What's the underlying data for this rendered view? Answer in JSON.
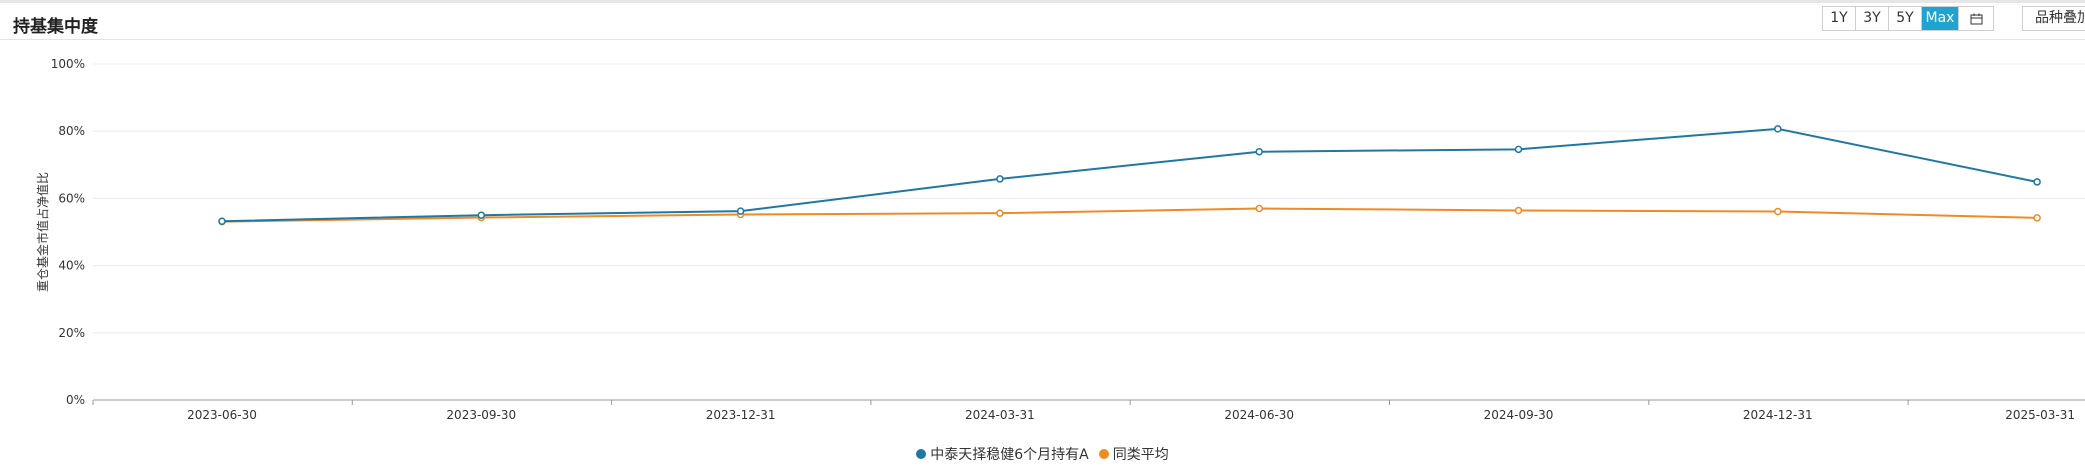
{
  "header": {
    "title": "持基集中度"
  },
  "range_buttons": [
    {
      "label": "1Y",
      "active": false
    },
    {
      "label": "3Y",
      "active": false
    },
    {
      "label": "5Y",
      "active": false
    },
    {
      "label": "Max",
      "active": true
    }
  ],
  "calendar_icon": "calendar-icon",
  "overlay_button": {
    "label": "品种叠加"
  },
  "colors": {
    "series1": "#1f77a4",
    "series2": "#f08a24",
    "active_button": "#1ea3d3"
  },
  "chart_data": {
    "type": "line",
    "ylabel": "重仓基金市值占净值比",
    "xlabel": "",
    "ylim": [
      0,
      100
    ],
    "y_ticks": [
      "0%",
      "20%",
      "40%",
      "60%",
      "80%",
      "100%"
    ],
    "categories": [
      "2023-06-30",
      "2023-09-30",
      "2023-12-31",
      "2024-03-31",
      "2024-06-30",
      "2024-09-30",
      "2024-12-31",
      "2025-03-31"
    ],
    "series": [
      {
        "name": "中泰天择稳健6个月持有A",
        "values": [
          53.2,
          55.0,
          56.2,
          65.8,
          73.9,
          74.6,
          80.7,
          64.9
        ]
      },
      {
        "name": "同类平均",
        "values": [
          53.1,
          54.3,
          55.2,
          55.6,
          57.0,
          56.4,
          56.1,
          54.2
        ]
      }
    ],
    "grid": true,
    "legend": "bottom-center"
  }
}
